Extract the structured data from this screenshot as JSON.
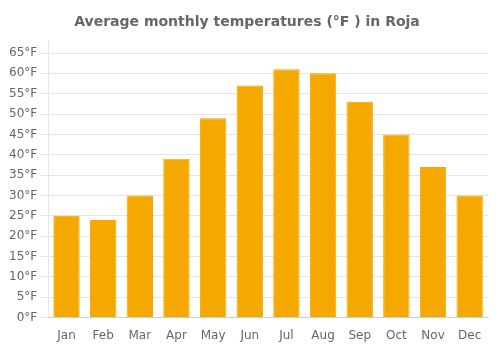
{
  "chart_data": {
    "type": "bar",
    "title": "Average monthly temperatures (°F ) in Roja",
    "categories": [
      "Jan",
      "Feb",
      "Mar",
      "Apr",
      "May",
      "Jun",
      "Jul",
      "Aug",
      "Sep",
      "Oct",
      "Nov",
      "Dec"
    ],
    "values": [
      25,
      24,
      30,
      39,
      49,
      57,
      61,
      60,
      53,
      45,
      37,
      30
    ],
    "color": "#F5A800",
    "ylim": [
      0,
      68
    ],
    "yticks": [
      {
        "value": 0,
        "label": "0°F"
      },
      {
        "value": 5,
        "label": "5°F"
      },
      {
        "value": 10,
        "label": "10°F"
      },
      {
        "value": 15,
        "label": "15°F"
      },
      {
        "value": 20,
        "label": "20°F"
      },
      {
        "value": 25,
        "label": "25°F"
      },
      {
        "value": 30,
        "label": "30°F"
      },
      {
        "value": 35,
        "label": "35°F"
      },
      {
        "value": 40,
        "label": "40°F"
      },
      {
        "value": 45,
        "label": "45°F"
      },
      {
        "value": 50,
        "label": "50°F"
      },
      {
        "value": 55,
        "label": "55°F"
      },
      {
        "value": 60,
        "label": "60°F"
      },
      {
        "value": 65,
        "label": "65°F"
      }
    ],
    "grid": true
  }
}
